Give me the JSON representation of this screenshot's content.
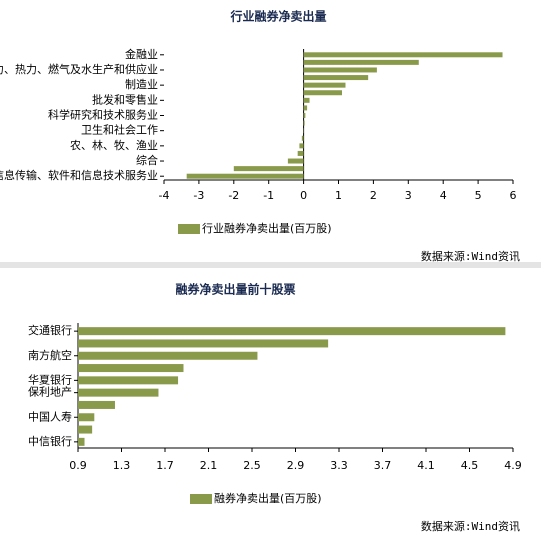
{
  "chart_data": [
    {
      "type": "bar",
      "title": "行业融券净卖出量",
      "categories": [
        "金融业",
        null,
        "电力、热力、燃气及水生产和供应业",
        null,
        "制造业",
        null,
        "批发和零售业",
        null,
        "科学研究和技术服务业",
        null,
        "卫生和社会工作",
        null,
        "农、林、牧、渔业",
        null,
        "综合",
        null,
        "信息传输、软件和信息技术服务业"
      ],
      "series": [
        {
          "name": "行业融券净卖出量(百万股)",
          "color": "#8a9a4b",
          "values": [
            5.7,
            3.3,
            2.1,
            1.85,
            1.2,
            1.1,
            0.17,
            0.1,
            0.05,
            0.03,
            0.01,
            -0.05,
            -0.12,
            -0.17,
            -0.45,
            -2.0,
            -3.35
          ]
        }
      ],
      "xlim": [
        -4,
        6
      ],
      "xticks": [
        -4,
        -3,
        -2,
        -1,
        0,
        1,
        2,
        3,
        4,
        5,
        6
      ],
      "source": "数据来源:Wind资讯"
    },
    {
      "type": "bar",
      "title": "融券净卖出量前十股票",
      "categories": [
        "交通银行",
        null,
        "南方航空",
        null,
        "华夏银行",
        "保利地产",
        null,
        "中国人寿",
        null,
        "中信银行"
      ],
      "series": [
        {
          "name": "融券净卖出量(百万股)",
          "color": "#8a9a4b",
          "values": [
            4.83,
            3.2,
            2.55,
            1.87,
            1.82,
            1.64,
            1.24,
            1.05,
            1.03,
            0.96
          ]
        }
      ],
      "xlim": [
        0.9,
        4.9
      ],
      "xticks": [
        0.9,
        1.3,
        1.7,
        2.1,
        2.5,
        2.9,
        3.3,
        3.7,
        4.1,
        4.5,
        4.9
      ],
      "source": "数据来源:Wind资讯"
    }
  ]
}
